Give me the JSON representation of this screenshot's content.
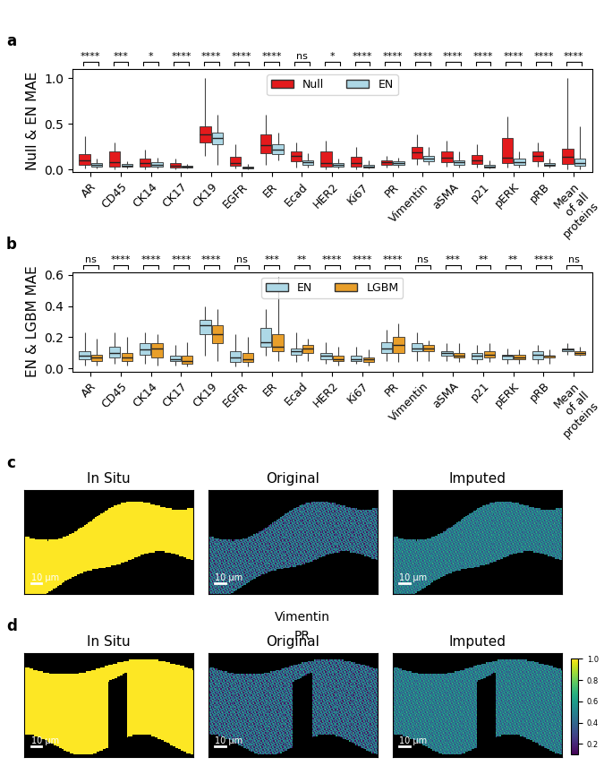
{
  "chart_data": [
    {
      "type": "boxen",
      "panel_label": "a",
      "ylabel": "Null & EN MAE",
      "categories": [
        "AR",
        "CD45",
        "CK14",
        "CK17",
        "CK19",
        "EGFR",
        "ER",
        "Ecad",
        "HER2",
        "Ki67",
        "PR",
        "Vimentin",
        "aSMA",
        "p21",
        "pERK",
        "pRB",
        "Mean\nof all\nproteins"
      ],
      "significance": [
        "****",
        "***",
        "*",
        "****",
        "****",
        "****",
        "****",
        "ns",
        "*",
        "****",
        "****",
        "****",
        "****",
        "****",
        "****",
        "****",
        "****"
      ],
      "ylim": [
        -0.03,
        1.1
      ],
      "yticks": [
        {
          "value": 0.0,
          "label": "0.0"
        },
        {
          "value": 0.5,
          "label": "0.5"
        },
        {
          "value": 1.0,
          "label": "1.0"
        }
      ],
      "legend": "upper center",
      "series": [
        {
          "name": "Null",
          "color": "#e31a1c",
          "median": [
            0.1,
            0.08,
            0.07,
            0.04,
            0.38,
            0.07,
            0.27,
            0.15,
            0.07,
            0.07,
            0.08,
            0.19,
            0.13,
            0.1,
            0.13,
            0.15,
            0.14
          ],
          "q1": [
            0.05,
            0.03,
            0.03,
            0.02,
            0.3,
            0.04,
            0.18,
            0.09,
            0.03,
            0.03,
            0.05,
            0.12,
            0.08,
            0.06,
            0.07,
            0.09,
            0.06
          ],
          "q3": [
            0.17,
            0.2,
            0.12,
            0.07,
            0.47,
            0.14,
            0.38,
            0.2,
            0.2,
            0.14,
            0.1,
            0.25,
            0.2,
            0.16,
            0.35,
            0.2,
            0.23
          ],
          "low": [
            0.01,
            0.0,
            0.0,
            0.0,
            0.15,
            0.01,
            0.05,
            0.02,
            0.0,
            0.0,
            0.02,
            0.05,
            0.03,
            0.02,
            0.02,
            0.03,
            0.0
          ],
          "high": [
            0.37,
            0.3,
            0.22,
            0.12,
            1.0,
            0.28,
            0.6,
            0.3,
            0.32,
            0.25,
            0.15,
            0.38,
            0.32,
            0.28,
            0.58,
            0.3,
            1.0
          ]
        },
        {
          "name": "EN",
          "color": "#add8e6",
          "median": [
            0.05,
            0.04,
            0.05,
            0.03,
            0.35,
            0.02,
            0.22,
            0.08,
            0.05,
            0.03,
            0.07,
            0.12,
            0.08,
            0.03,
            0.08,
            0.05,
            0.07
          ],
          "q1": [
            0.03,
            0.03,
            0.03,
            0.02,
            0.28,
            0.01,
            0.17,
            0.05,
            0.03,
            0.02,
            0.05,
            0.09,
            0.05,
            0.02,
            0.05,
            0.04,
            0.04
          ],
          "q3": [
            0.07,
            0.06,
            0.08,
            0.04,
            0.4,
            0.03,
            0.28,
            0.1,
            0.07,
            0.05,
            0.09,
            0.15,
            0.1,
            0.05,
            0.12,
            0.07,
            0.12
          ],
          "low": [
            0.01,
            0.01,
            0.01,
            0.01,
            0.05,
            0.0,
            0.1,
            0.02,
            0.01,
            0.01,
            0.02,
            0.05,
            0.02,
            0.01,
            0.02,
            0.02,
            0.0
          ],
          "high": [
            0.12,
            0.09,
            0.13,
            0.06,
            0.6,
            0.06,
            0.4,
            0.18,
            0.12,
            0.1,
            0.13,
            0.25,
            0.2,
            0.1,
            0.2,
            0.12,
            0.47
          ]
        }
      ]
    },
    {
      "type": "boxen",
      "panel_label": "b",
      "ylabel": "EN & LGBM MAE",
      "categories": [
        "AR",
        "CD45",
        "CK14",
        "CK17",
        "CK19",
        "EGFR",
        "ER",
        "Ecad",
        "HER2",
        "Ki67",
        "PR",
        "Vimentin",
        "aSMA",
        "p21",
        "pERK",
        "pRB",
        "Mean\nof all\nproteins"
      ],
      "significance": [
        "ns",
        "****",
        "****",
        "****",
        "****",
        "ns",
        "***",
        "**",
        "****",
        "****",
        "****",
        "ns",
        "***",
        "**",
        "**",
        "****",
        "ns"
      ],
      "ylim": [
        -0.02,
        0.62
      ],
      "yticks": [
        {
          "value": 0.0,
          "label": "0.0"
        },
        {
          "value": 0.2,
          "label": "0.2"
        },
        {
          "value": 0.4,
          "label": "0.4"
        },
        {
          "value": 0.6,
          "label": "0.6"
        }
      ],
      "legend": "upper center",
      "series": [
        {
          "name": "EN",
          "color": "#add8e6",
          "median": [
            0.08,
            0.1,
            0.12,
            0.06,
            0.28,
            0.07,
            0.17,
            0.11,
            0.08,
            0.06,
            0.13,
            0.13,
            0.1,
            0.08,
            0.08,
            0.09,
            0.12
          ],
          "q1": [
            0.06,
            0.07,
            0.09,
            0.05,
            0.22,
            0.04,
            0.14,
            0.09,
            0.06,
            0.05,
            0.1,
            0.11,
            0.08,
            0.06,
            0.06,
            0.06,
            0.11
          ],
          "q3": [
            0.11,
            0.14,
            0.16,
            0.08,
            0.31,
            0.11,
            0.26,
            0.13,
            0.1,
            0.08,
            0.17,
            0.16,
            0.11,
            0.1,
            0.09,
            0.11,
            0.13
          ],
          "low": [
            0.02,
            0.03,
            0.03,
            0.02,
            0.08,
            0.01,
            0.08,
            0.04,
            0.03,
            0.03,
            0.05,
            0.05,
            0.05,
            0.03,
            0.03,
            0.03,
            0.09
          ],
          "high": [
            0.23,
            0.23,
            0.23,
            0.15,
            0.4,
            0.22,
            0.38,
            0.23,
            0.17,
            0.14,
            0.25,
            0.23,
            0.16,
            0.15,
            0.13,
            0.15,
            0.16
          ]
        },
        {
          "name": "LGBM",
          "color": "#e99f2a",
          "median": [
            0.07,
            0.07,
            0.13,
            0.05,
            0.22,
            0.06,
            0.14,
            0.13,
            0.06,
            0.06,
            0.15,
            0.13,
            0.08,
            0.09,
            0.07,
            0.08,
            0.1
          ],
          "q1": [
            0.05,
            0.05,
            0.07,
            0.03,
            0.16,
            0.04,
            0.11,
            0.1,
            0.05,
            0.04,
            0.1,
            0.11,
            0.07,
            0.07,
            0.06,
            0.07,
            0.09
          ],
          "q3": [
            0.09,
            0.1,
            0.16,
            0.08,
            0.28,
            0.1,
            0.22,
            0.15,
            0.08,
            0.07,
            0.2,
            0.15,
            0.1,
            0.11,
            0.09,
            0.08,
            0.11
          ],
          "low": [
            0.02,
            0.02,
            0.02,
            0.01,
            0.05,
            0.01,
            0.05,
            0.05,
            0.02,
            0.02,
            0.04,
            0.05,
            0.04,
            0.04,
            0.03,
            0.03,
            0.08
          ],
          "high": [
            0.19,
            0.2,
            0.22,
            0.17,
            0.38,
            0.2,
            0.59,
            0.19,
            0.14,
            0.12,
            0.29,
            0.18,
            0.16,
            0.16,
            0.12,
            0.12,
            0.14
          ]
        }
      ]
    }
  ],
  "images": {
    "titles": [
      "In Situ",
      "Original",
      "Imputed"
    ],
    "scale_bar": "10 μm",
    "panels": [
      {
        "label": "c",
        "marker": "Vimentin"
      },
      {
        "label": "d",
        "marker": "PR"
      }
    ],
    "colorbar": {
      "range": [
        0.1,
        1.0
      ],
      "ticks": [
        {
          "value": 0.2,
          "label": "0.2"
        },
        {
          "value": 0.4,
          "label": "0.4"
        },
        {
          "value": 0.6,
          "label": "0.6"
        },
        {
          "value": 0.8,
          "label": "0.8"
        },
        {
          "value": 1.0,
          "label": "1.0"
        }
      ]
    }
  }
}
